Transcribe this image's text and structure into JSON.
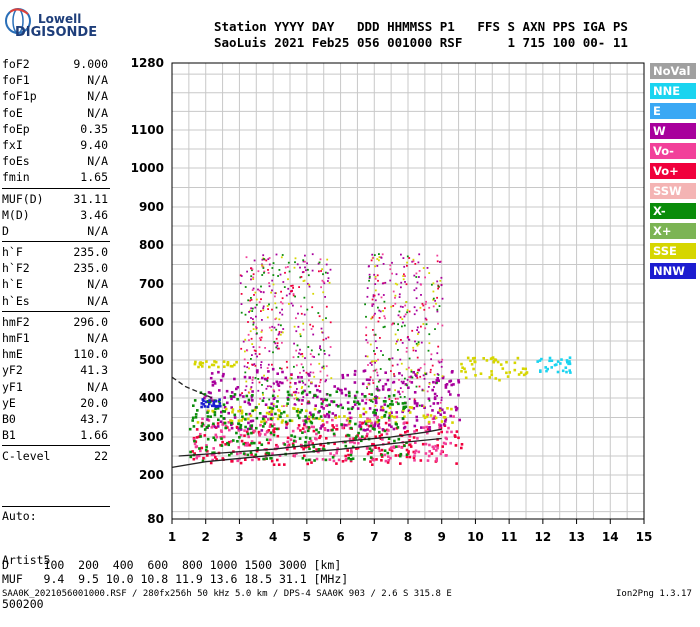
{
  "logo": {
    "line1": "Lowell",
    "line2": "DIGISONDE"
  },
  "header": {
    "line1": "Station YYYY DAY   DDD HHMMSS P1   FFS S AXN PPS IGA PS",
    "line2": "SaoLuis 2021 Feb25 056 001000 RSF      1 715 100 00- 11"
  },
  "params": [
    {
      "name": "foF2",
      "value": "9.000"
    },
    {
      "name": "foF1",
      "value": "N/A"
    },
    {
      "name": "foF1p",
      "value": "N/A"
    },
    {
      "name": "foE",
      "value": "N/A"
    },
    {
      "name": "foEp",
      "value": "0.35"
    },
    {
      "name": "fxI",
      "value": "9.40"
    },
    {
      "name": "foEs",
      "value": "N/A"
    },
    {
      "name": "fmin",
      "value": "1.65"
    },
    {
      "name": "MUF(D)",
      "value": "31.11"
    },
    {
      "name": "M(D)",
      "value": "3.46"
    },
    {
      "name": "D",
      "value": "N/A"
    },
    {
      "name": "h`F",
      "value": "235.0"
    },
    {
      "name": "h`F2",
      "value": "235.0"
    },
    {
      "name": "h`E",
      "value": "N/A"
    },
    {
      "name": "h`Es",
      "value": "N/A"
    },
    {
      "name": "hmF2",
      "value": "296.0"
    },
    {
      "name": "hmF1",
      "value": "N/A"
    },
    {
      "name": "hmE",
      "value": "110.0"
    },
    {
      "name": "yF2",
      "value": "41.3"
    },
    {
      "name": "yF1",
      "value": "N/A"
    },
    {
      "name": "yE",
      "value": "20.0"
    },
    {
      "name": "B0",
      "value": "43.7"
    },
    {
      "name": "B1",
      "value": "1.66"
    },
    {
      "name": "C-level",
      "value": "22"
    }
  ],
  "autoscale": {
    "line1": "Auto:",
    "line2": "Artist5",
    "line3": "500200"
  },
  "footer": {
    "d_row": "D     100  200  400  600  800 1000 1500 3000 [km]",
    "muf_row": "MUF   9.4  9.5 10.0 10.8 11.9 13.6 18.5 31.1 [MHz]",
    "file_info": "SAA0K_2021056001000.RSF / 280fx256h 50 kHz 5.0 km / DPS-4 SAA0K 903 / 2.6 S 315.8 E",
    "version": "Ion2Png 1.3.17"
  },
  "legend": [
    {
      "label": "NoVal",
      "color": "#a0a0a0"
    },
    {
      "label": "NNE",
      "color": "#1ad4f0"
    },
    {
      "label": "E",
      "color": "#3aa8f4"
    },
    {
      "label": "W",
      "color": "#a8009c"
    },
    {
      "label": "Vo-",
      "color": "#f2409a"
    },
    {
      "label": "Vo+",
      "color": "#f0003c"
    },
    {
      "label": "SSW",
      "color": "#f4b4b4"
    },
    {
      "label": "X-",
      "color": "#0a8c0a"
    },
    {
      "label": "X+",
      "color": "#7cb454"
    },
    {
      "label": "SSE",
      "color": "#d6d600"
    },
    {
      "label": "NNW",
      "color": "#1c1cd0"
    }
  ],
  "chart_data": {
    "type": "scatter",
    "x_ticks": [
      1,
      2,
      3,
      4,
      5,
      6,
      7,
      8,
      9,
      10,
      11,
      12,
      13,
      14,
      15
    ],
    "y_ticks": [
      80,
      200,
      300,
      400,
      500,
      600,
      700,
      800,
      900,
      1000,
      1100,
      1280
    ],
    "xlim": [
      1,
      15
    ],
    "ylim": [
      80,
      1280
    ],
    "y_scale": "nonlinear (compressed above 900 km)",
    "grid": true,
    "echo_clusters": [
      {
        "mode": "Vo+",
        "color": "#f0003c",
        "x_range": [
          1.5,
          9.6
        ],
        "height_range": [
          230,
          340
        ]
      },
      {
        "mode": "Vo-",
        "color": "#f2409a",
        "x_range": [
          1.6,
          9.4
        ],
        "height_range": [
          240,
          360
        ]
      },
      {
        "mode": "W",
        "color": "#a8009c",
        "x_range": [
          1.9,
          9.5
        ],
        "height_range": [
          320,
          480
        ]
      },
      {
        "mode": "SSE",
        "color": "#d6d600",
        "x_range": [
          1.7,
          9.4
        ],
        "height_range": [
          340,
          380
        ]
      },
      {
        "mode": "SSE",
        "color": "#d6d600",
        "x_range": [
          1.6,
          3.0
        ],
        "height_range": [
          485,
          500
        ]
      },
      {
        "mode": "X-",
        "color": "#0a8c0a",
        "x_range": [
          1.5,
          8.0
        ],
        "height_range": [
          240,
          420
        ]
      },
      {
        "mode": "NNW",
        "color": "#1c1cd0",
        "x_range": [
          1.8,
          2.4
        ],
        "height_range": [
          380,
          400
        ]
      },
      {
        "mode": "NNE",
        "color": "#1ad4f0",
        "x_range": [
          11.8,
          12.8
        ],
        "height_range": [
          470,
          510
        ]
      },
      {
        "mode": "SSE",
        "color": "#d6d600",
        "x_range": [
          9.4,
          11.5
        ],
        "height_range": [
          450,
          510
        ]
      }
    ],
    "trace_lines": [
      {
        "name": "virtual height trace",
        "points": [
          [
            1.2,
            250
          ],
          [
            2,
            255
          ],
          [
            4,
            268
          ],
          [
            6,
            288
          ],
          [
            7.5,
            300
          ],
          [
            8.5,
            312
          ],
          [
            9,
            320
          ]
        ]
      },
      {
        "name": "electron density profile",
        "points": [
          [
            1.0,
            220
          ],
          [
            2,
            235
          ],
          [
            4,
            252
          ],
          [
            6,
            268
          ],
          [
            8,
            287
          ],
          [
            9,
            296
          ]
        ]
      },
      {
        "name": "lower dashed trace",
        "points": [
          [
            1.0,
            455
          ],
          [
            1.4,
            430
          ],
          [
            1.8,
            415
          ],
          [
            2.2,
            400
          ]
        ]
      }
    ]
  }
}
